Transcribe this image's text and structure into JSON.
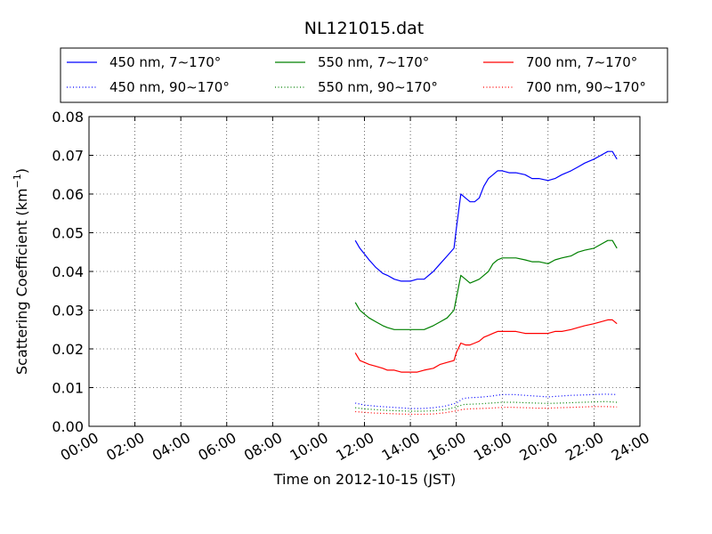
{
  "chart_data": {
    "type": "line",
    "title": "NL121015.dat",
    "xlabel": "Time on 2012-10-15 (JST)",
    "ylabel": "Scattering Coefficient (km",
    "ylabel_exponent": "−1",
    "ylabel_suffix": ")",
    "xlim": [
      0,
      24
    ],
    "ylim": [
      0,
      0.08
    ],
    "x_ticks": [
      0,
      2,
      4,
      6,
      8,
      10,
      12,
      14,
      16,
      18,
      20,
      22,
      24
    ],
    "x_tick_labels": [
      "00:00",
      "02:00",
      "04:00",
      "06:00",
      "08:00",
      "10:00",
      "12:00",
      "14:00",
      "16:00",
      "18:00",
      "20:00",
      "22:00",
      "24:00"
    ],
    "y_ticks": [
      0,
      0.01,
      0.02,
      0.03,
      0.04,
      0.05,
      0.06,
      0.07,
      0.08
    ],
    "y_tick_labels": [
      "0.00",
      "0.01",
      "0.02",
      "0.03",
      "0.04",
      "0.05",
      "0.06",
      "0.07",
      "0.08"
    ],
    "grid": true,
    "legend_placement": "top, 3 columns",
    "series": [
      {
        "name": "450 nm, 7∼170°",
        "color": "#0000ff",
        "style": "solid",
        "x": [
          11.6,
          11.8,
          12.0,
          12.2,
          12.5,
          12.8,
          13.0,
          13.3,
          13.6,
          14.0,
          14.3,
          14.6,
          15.0,
          15.3,
          15.6,
          15.9,
          16.0,
          16.2,
          16.4,
          16.6,
          16.8,
          17.0,
          17.2,
          17.4,
          17.6,
          17.8,
          18.0,
          18.3,
          18.6,
          19.0,
          19.3,
          19.6,
          20.0,
          20.3,
          20.6,
          21.0,
          21.3,
          21.6,
          22.0,
          22.3,
          22.6,
          22.8,
          23.0
        ],
        "y": [
          0.048,
          0.046,
          0.0445,
          0.043,
          0.041,
          0.0395,
          0.039,
          0.038,
          0.0375,
          0.0375,
          0.038,
          0.038,
          0.04,
          0.042,
          0.044,
          0.046,
          0.051,
          0.06,
          0.059,
          0.058,
          0.058,
          0.059,
          0.062,
          0.064,
          0.065,
          0.066,
          0.066,
          0.0655,
          0.0655,
          0.065,
          0.064,
          0.064,
          0.0635,
          0.064,
          0.065,
          0.066,
          0.067,
          0.068,
          0.069,
          0.07,
          0.071,
          0.071,
          0.069
        ]
      },
      {
        "name": "550 nm, 7∼170°",
        "color": "#008000",
        "style": "solid",
        "x": [
          11.6,
          11.8,
          12.0,
          12.2,
          12.5,
          12.8,
          13.0,
          13.3,
          13.6,
          14.0,
          14.3,
          14.6,
          15.0,
          15.3,
          15.6,
          15.9,
          16.0,
          16.2,
          16.4,
          16.6,
          16.8,
          17.0,
          17.2,
          17.4,
          17.6,
          17.8,
          18.0,
          18.3,
          18.6,
          19.0,
          19.3,
          19.6,
          20.0,
          20.3,
          20.6,
          21.0,
          21.3,
          21.6,
          22.0,
          22.3,
          22.6,
          22.8,
          23.0
        ],
        "y": [
          0.032,
          0.03,
          0.029,
          0.028,
          0.027,
          0.026,
          0.0255,
          0.025,
          0.025,
          0.025,
          0.025,
          0.025,
          0.026,
          0.027,
          0.028,
          0.03,
          0.033,
          0.039,
          0.038,
          0.037,
          0.0375,
          0.038,
          0.039,
          0.04,
          0.042,
          0.043,
          0.0435,
          0.0435,
          0.0435,
          0.043,
          0.0425,
          0.0425,
          0.042,
          0.043,
          0.0435,
          0.044,
          0.045,
          0.0455,
          0.046,
          0.047,
          0.048,
          0.048,
          0.046
        ]
      },
      {
        "name": "700 nm, 7∼170°",
        "color": "#ff0000",
        "style": "solid",
        "x": [
          11.6,
          11.8,
          12.0,
          12.2,
          12.5,
          12.8,
          13.0,
          13.3,
          13.6,
          14.0,
          14.3,
          14.6,
          15.0,
          15.3,
          15.6,
          15.9,
          16.0,
          16.2,
          16.4,
          16.6,
          16.8,
          17.0,
          17.2,
          17.4,
          17.6,
          17.8,
          18.0,
          18.3,
          18.6,
          19.0,
          19.3,
          19.6,
          20.0,
          20.3,
          20.6,
          21.0,
          21.3,
          21.6,
          22.0,
          22.3,
          22.6,
          22.8,
          23.0
        ],
        "y": [
          0.019,
          0.017,
          0.0165,
          0.016,
          0.0155,
          0.015,
          0.0145,
          0.0145,
          0.014,
          0.014,
          0.014,
          0.0145,
          0.015,
          0.016,
          0.0165,
          0.017,
          0.019,
          0.0215,
          0.021,
          0.021,
          0.0215,
          0.022,
          0.023,
          0.0235,
          0.024,
          0.0245,
          0.0245,
          0.0245,
          0.0245,
          0.024,
          0.024,
          0.024,
          0.024,
          0.0245,
          0.0245,
          0.025,
          0.0255,
          0.026,
          0.0265,
          0.027,
          0.0275,
          0.0275,
          0.0265
        ]
      },
      {
        "name": "450 nm, 90∼170°",
        "color": "#0000ff",
        "style": "dotted",
        "x": [
          11.6,
          12.0,
          12.5,
          13.0,
          13.5,
          14.0,
          14.5,
          15.0,
          15.5,
          16.0,
          16.3,
          16.6,
          17.0,
          17.5,
          18.0,
          18.5,
          19.0,
          19.5,
          20.0,
          20.5,
          21.0,
          21.5,
          22.0,
          22.5,
          23.0
        ],
        "y": [
          0.006,
          0.0055,
          0.0052,
          0.005,
          0.0048,
          0.0046,
          0.0046,
          0.0048,
          0.0052,
          0.006,
          0.0072,
          0.0074,
          0.0075,
          0.0078,
          0.0082,
          0.0082,
          0.008,
          0.0078,
          0.0076,
          0.0078,
          0.008,
          0.0081,
          0.0082,
          0.0083,
          0.0082
        ]
      },
      {
        "name": "550 nm, 90∼170°",
        "color": "#008000",
        "style": "dotted",
        "x": [
          11.6,
          12.0,
          12.5,
          13.0,
          13.5,
          14.0,
          14.5,
          15.0,
          15.5,
          16.0,
          16.3,
          16.6,
          17.0,
          17.5,
          18.0,
          18.5,
          19.0,
          19.5,
          20.0,
          20.5,
          21.0,
          21.5,
          22.0,
          22.5,
          23.0
        ],
        "y": [
          0.0048,
          0.0045,
          0.0043,
          0.0041,
          0.004,
          0.0039,
          0.0039,
          0.004,
          0.0043,
          0.005,
          0.0056,
          0.0057,
          0.0058,
          0.006,
          0.0062,
          0.0062,
          0.0061,
          0.006,
          0.0059,
          0.006,
          0.0061,
          0.0062,
          0.0063,
          0.0064,
          0.0062
        ]
      },
      {
        "name": "700 nm, 90∼170°",
        "color": "#ff0000",
        "style": "dotted",
        "x": [
          11.6,
          12.0,
          12.5,
          13.0,
          13.5,
          14.0,
          14.5,
          15.0,
          15.5,
          16.0,
          16.3,
          16.6,
          17.0,
          17.5,
          18.0,
          18.5,
          19.0,
          19.5,
          20.0,
          20.5,
          21.0,
          21.5,
          22.0,
          22.5,
          23.0
        ],
        "y": [
          0.0038,
          0.0036,
          0.0034,
          0.0033,
          0.0032,
          0.0031,
          0.0031,
          0.0032,
          0.0035,
          0.004,
          0.0044,
          0.0045,
          0.0046,
          0.0047,
          0.0049,
          0.0049,
          0.0048,
          0.0047,
          0.0047,
          0.0048,
          0.0049,
          0.005,
          0.0051,
          0.0051,
          0.005
        ]
      }
    ]
  }
}
